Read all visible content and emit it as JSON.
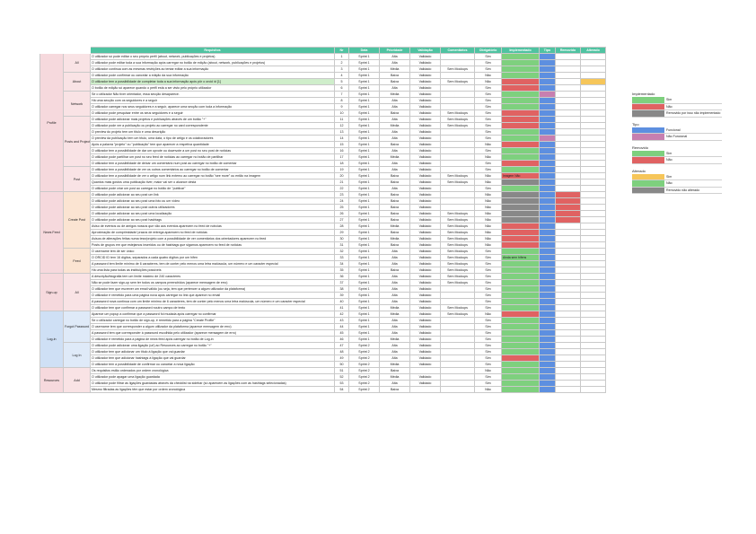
{
  "columns": [
    "",
    "",
    "Requisitos",
    "Nr",
    "Data",
    "Prioridade",
    "Validação",
    "Comentários",
    "Obrigatório",
    "Implementado",
    "Tipo",
    "Removido",
    "Alterado"
  ],
  "groups": [
    {
      "label": "Profile",
      "rows": 22,
      "style": "pink"
    },
    {
      "label": "News Feed",
      "rows": 13,
      "style": "pink"
    },
    {
      "label": "Sign-up",
      "rows": 6,
      "style": "pink"
    },
    {
      "label": "Log-in",
      "rows": 9,
      "style": "blue"
    },
    {
      "label": "Resources",
      "rows": 8,
      "style": "pink"
    }
  ],
  "subgroups": [
    {
      "label": "All",
      "rows": 3,
      "style": "pink"
    },
    {
      "label": "About",
      "rows": 3,
      "style": "pink"
    },
    {
      "label": "Network",
      "rows": 4,
      "style": "pink"
    },
    {
      "label": "Posts and Projects",
      "rows": 8,
      "style": "pink"
    },
    {
      "label": "Post",
      "rows": 4,
      "style": "pink"
    },
    {
      "label": "Create Post",
      "rows": 9,
      "style": "peach"
    },
    {
      "label": "Feed",
      "rows": 4,
      "style": "peach"
    },
    {
      "label": "All",
      "rows": 6,
      "style": "pink"
    },
    {
      "label": "Forgot Password",
      "rows": 5,
      "style": "blue"
    },
    {
      "label": "Log In",
      "rows": 4,
      "style": "blue"
    },
    {
      "label": "Add",
      "rows": 4,
      "style": "pink"
    },
    {
      "label": "View and Search",
      "rows": 4,
      "style": "pink"
    }
  ],
  "rows": [
    {
      "req": "O utilizador só pode editar o seu próprio perfil (about, network, publicações e projetos)",
      "nr": "1",
      "data": "Sprint 1",
      "prio": "Alta",
      "val": "Validado",
      "com": "",
      "obr": "Sim",
      "impl": "g",
      "tipo": "b",
      "rem": "",
      "alt": ""
    },
    {
      "req": "O utilizador pode editar toda a sua informação após carregar no botão de edição (about, network, publicações e projetos)",
      "nr": "2",
      "data": "Sprint 1",
      "prio": "Alta",
      "val": "Validado",
      "com": "",
      "obr": "Sim",
      "impl": "g",
      "tipo": "b",
      "rem": "",
      "alt": ""
    },
    {
      "req": "O utilizador continua com as mesmas restrições ao tentar editar a sua informação",
      "nr": "3",
      "data": "Sprint 1",
      "prio": "Média",
      "val": "Validado",
      "com": "Sem Mockups",
      "obr": "Sim",
      "impl": "g",
      "tipo": "b",
      "rem": "",
      "alt": ""
    },
    {
      "req": "O utilizador pode confirmar ou cancelar a edição da sua informação",
      "nr": "4",
      "data": "Sprint 1",
      "prio": "Baixa",
      "val": "Validado",
      "com": "",
      "obr": "Não",
      "impl": "g",
      "tipo": "b",
      "rem": "",
      "alt": ""
    },
    {
      "req": "O utilizador tem a possibilidade de completar toda a sua informação após pôr o orcid id [1]",
      "nr": "5",
      "data": "Sprint 1",
      "prio": "Baixa",
      "val": "Validado",
      "com": "Sem Mockups",
      "obr": "Não",
      "impl": "r",
      "tipo": "b",
      "rem": "",
      "alt": "y",
      "hl": true
    },
    {
      "req": "O botão de edição só aparece quando o perfil está a ser visto pelo próprio utilizador",
      "nr": "6",
      "data": "Sprint 1",
      "prio": "Alta",
      "val": "Validado",
      "com": "",
      "obr": "Sim",
      "impl": "r",
      "tipo": "b",
      "rem": "",
      "alt": ""
    },
    {
      "req": "Se o utilizador Não tiver orientador, essa secção desaparece.",
      "nr": "7",
      "data": "Sprint 1",
      "prio": "Média",
      "val": "Validado",
      "com": "",
      "obr": "Sim",
      "impl": "g",
      "tipo": "p",
      "rem": "",
      "alt": ""
    },
    {
      "req": "Há uma secção com os seguidores e a seguir",
      "nr": "8",
      "data": "Sprint 1",
      "prio": "Alta",
      "val": "Validado",
      "com": "",
      "obr": "Sim",
      "impl": "g",
      "tipo": "b",
      "rem": "",
      "alt": ""
    },
    {
      "req": "O utilizador carregar nos seus seguidores e a seguir, aparece uma secção com toda a informação",
      "nr": "9",
      "data": "Sprint 1",
      "prio": "Alta",
      "val": "Validado",
      "com": "",
      "obr": "Sim",
      "impl": "g",
      "tipo": "b",
      "rem": "",
      "alt": ""
    },
    {
      "req": "O utilizador pode pesquisar entre os seus seguidores e a seguir",
      "nr": "10",
      "data": "Sprint 1",
      "prio": "Baixa",
      "val": "Validado",
      "com": "Sem Mockups",
      "obr": "Sim",
      "impl": "r",
      "tipo": "b",
      "rem": "",
      "alt": ""
    },
    {
      "req": "O utilizador pode adicionar mais projetos e publicações através de um botão \"+\"",
      "nr": "11",
      "data": "Sprint 1",
      "prio": "Alta",
      "val": "Validado",
      "com": "Sem Mockups",
      "obr": "Sim",
      "impl": "r",
      "tipo": "b",
      "rem": "",
      "alt": ""
    },
    {
      "req": "O utilizador pode ver a publicação ou projeto ao carregar no card correspondente",
      "nr": "12",
      "data": "Sprint 1",
      "prio": "Média",
      "val": "Validado",
      "com": "Sem Mockups",
      "obr": "Sim",
      "impl": "r",
      "tipo": "b",
      "rem": "",
      "alt": ""
    },
    {
      "req": "O preview do projeto tem um título e uma descrição",
      "nr": "13",
      "data": "Sprint 1",
      "prio": "Alta",
      "val": "Validado",
      "com": "",
      "obr": "Sim",
      "impl": "g",
      "tipo": "b",
      "rem": "",
      "alt": ""
    },
    {
      "req": "O preview da publicação tem um título, uma data, o tipo de artigo e os colaboradores",
      "nr": "14",
      "data": "Sprint 1",
      "prio": "Alta",
      "val": "Validado",
      "com": "",
      "obr": "Sim",
      "impl": "g",
      "tipo": "p",
      "rem": "",
      "alt": ""
    },
    {
      "req": "Após a palavra \"projeto\" ou \"publicação\" tem que aparecer a respetiva quantidade",
      "nr": "15",
      "data": "Sprint 1",
      "prio": "Baixa",
      "val": "Validado",
      "com": "",
      "obr": "Não",
      "impl": "r",
      "tipo": "b",
      "rem": "",
      "alt": ""
    },
    {
      "req": "O utilizador tem a possibilidade de dar um upvote ou downvote a um post no seu post de notícias",
      "nr": "16",
      "data": "Sprint 1",
      "prio": "Alta",
      "val": "Validado",
      "com": "",
      "obr": "Sim",
      "impl": "g",
      "tipo": "b",
      "rem": "",
      "alt": ""
    },
    {
      "req": "O utilizador pode partilhar um post no seu feed de notícias ao carregar no botão de partilhar",
      "nr": "17",
      "data": "Sprint 1",
      "prio": "Média",
      "val": "Validado",
      "com": "",
      "obr": "Não",
      "impl": "g",
      "tipo": "b",
      "rem": "",
      "alt": ""
    },
    {
      "req": "O utilizador tem a possibilidade de deixar um comentário num post ao carregar no botão de comentar",
      "nr": "18",
      "data": "Sprint 1",
      "prio": "Alta",
      "val": "Validado",
      "com": "",
      "obr": "Sim",
      "impl": "r",
      "tipo": "b",
      "rem": "",
      "alt": ""
    },
    {
      "req": "O utilizador tem a possibilidade de ver os outros comentários ao carregar no botão de comentar",
      "nr": "19",
      "data": "Sprint 1",
      "prio": "Alta",
      "val": "Validado",
      "com": "",
      "obr": "Sim",
      "impl": "g",
      "tipo": "b",
      "rem": "",
      "alt": ""
    },
    {
      "req": "O utilizador tem a possibilidade de ver o artigo num link externo ao carregar no botão \"see more\" ou então na imagem",
      "nr": "20",
      "data": "Sprint 1",
      "prio": "Baixa",
      "val": "Validado",
      "com": "Sem Mockups",
      "obr": "Não",
      "impl": "r",
      "implnote": "Imagem Não",
      "tipo": "b",
      "rem": "",
      "alt": ""
    },
    {
      "req": "Quantos mais gostos uma publicação tiver, maior vai ser o alcance desta",
      "nr": "21",
      "data": "Sprint 1",
      "prio": "Baixa",
      "val": "Validado",
      "com": "Sem Mockups",
      "obr": "Não",
      "impl": "gr",
      "tipo": "b",
      "rem": "",
      "alt": ""
    },
    {
      "req": "O utilizador pode criar um post ao carregar no botão de \"publicar\"",
      "nr": "22",
      "data": "Sprint 1",
      "prio": "Alta",
      "val": "Validado",
      "com": "",
      "obr": "Sim",
      "impl": "g",
      "tipo": "b",
      "rem": "",
      "alt": ""
    },
    {
      "req": "O utilizador pode adicionar ao seu post um link",
      "nr": "23",
      "data": "Sprint 1",
      "prio": "Baixa",
      "val": "Validado",
      "com": "",
      "obr": "Não",
      "impl": "gr",
      "tipo": "b",
      "rem": "r",
      "alt": ""
    },
    {
      "req": "O utilizador pode adicionar ao seu post uma foto ou um vídeo",
      "nr": "24",
      "data": "Sprint 1",
      "prio": "Baixa",
      "val": "Validado",
      "com": "",
      "obr": "Não",
      "impl": "gr",
      "tipo": "b",
      "rem": "r",
      "alt": ""
    },
    {
      "req": "O utilizador pode adicionar ao seu post outros utilizadores",
      "nr": "25",
      "data": "Sprint 1",
      "prio": "Baixa",
      "val": "Validado",
      "com": "",
      "obr": "Não",
      "impl": "gr",
      "tipo": "b",
      "rem": "r",
      "alt": ""
    },
    {
      "req": "O utilizador pode adicionar ao seu post uma localização",
      "nr": "26",
      "data": "Sprint 1",
      "prio": "Baixa",
      "val": "Validado",
      "com": "Sem Mockups",
      "obr": "Não",
      "impl": "gr",
      "tipo": "b",
      "rem": "r",
      "alt": ""
    },
    {
      "req": "O utilizador pode adicionar ao seu post hashtags",
      "nr": "27",
      "data": "Sprint 1",
      "prio": "Baixa",
      "val": "Validado",
      "com": "Sem Mockups",
      "obr": "Não",
      "impl": "gr",
      "tipo": "b",
      "rem": "r",
      "alt": ""
    },
    {
      "req": "Aviso de eventos ou de amigos nossos que vão aos eventos aparecem no feed de notícias",
      "nr": "28",
      "data": "Sprint 1",
      "prio": "Média",
      "val": "Validado",
      "com": "Sem Mockups",
      "obr": "Não",
      "impl": "r",
      "tipo": "b",
      "rem": "",
      "alt": ""
    },
    {
      "req": "Aproximação de comprimidade/ prazos de entrega aparecem no feed de notícias",
      "nr": "29",
      "data": "Sprint 1",
      "prio": "Baixa",
      "val": "Validado",
      "com": "Sem Mockups",
      "obr": "Não",
      "impl": "r",
      "tipo": "b",
      "rem": "",
      "alt": ""
    },
    {
      "req": "Avisos de alterações feitas numa tese/projeto com a possibilidade de ver comentários dos orientadores aparecem no feed",
      "nr": "30",
      "data": "Sprint 1",
      "prio": "Média",
      "val": "Validado",
      "com": "Sem Mockups",
      "obr": "Não",
      "impl": "r",
      "tipo": "b",
      "rem": "",
      "alt": ""
    },
    {
      "req": "Posts de grupos em que estejamos inseridos ou de hashtags que sigamos aparecem no feed de notícias",
      "nr": "31",
      "data": "Sprint 1",
      "prio": "Baixa",
      "val": "Validado",
      "com": "Sem Mockups",
      "obr": "Não",
      "impl": "r",
      "tipo": "b",
      "rem": "",
      "alt": ""
    },
    {
      "req": "O username tem de ser único",
      "nr": "32",
      "data": "Sprint 1",
      "prio": "Alta",
      "val": "Validado",
      "com": "Sem Mockups",
      "obr": "Sim",
      "impl": "g",
      "tipo": "b",
      "rem": "",
      "alt": ""
    },
    {
      "req": "O ORCID ID tem 16 dígitos, separados a cada quatro dígitos por um hífen",
      "nr": "33",
      "data": "Sprint 1",
      "prio": "Alta",
      "val": "Validado",
      "com": "Sem Mockups",
      "obr": "Sim",
      "impl": "g",
      "implnote": "Ainda sem hífens",
      "tipo": "b",
      "rem": "",
      "alt": ""
    },
    {
      "req": "A password tem limite mínimo de 6 caracteres, tem de conter pelo menos uma letra maiúscula, um número e um caracter especial",
      "nr": "34",
      "data": "Sprint 1",
      "prio": "Alta",
      "val": "Validado",
      "com": "Sem Mockups",
      "obr": "Sim",
      "impl": "g",
      "tipo": "b",
      "rem": "",
      "alt": ""
    },
    {
      "req": "Há uma lista para todas as instituições possíveis",
      "nr": "35",
      "data": "Sprint 1",
      "prio": "Baixa",
      "val": "Validado",
      "com": "Sem Mockups",
      "obr": "Sim",
      "impl": "g",
      "tipo": "b",
      "rem": "",
      "alt": ""
    },
    {
      "req": "A descrição/biografia tem um limite máximo de 240 caracteres",
      "nr": "36",
      "data": "Sprint 1",
      "prio": "Alta",
      "val": "Validado",
      "com": "Sem Mockups",
      "obr": "Sim",
      "impl": "g",
      "tipo": "b",
      "rem": "",
      "alt": ""
    },
    {
      "req": "Não se pode fazer sign-up sem ter todos os campos preenchidos (aparece mensagem de erro)",
      "nr": "37",
      "data": "Sprint 1",
      "prio": "Alta",
      "val": "Validado",
      "com": "Sem Mockups",
      "obr": "Sim",
      "impl": "g",
      "tipo": "b",
      "rem": "",
      "alt": ""
    },
    {
      "req": "O utilizador tem que escrever um email válido (ou seja, tem que pertencer a algum utilizador da plataforma)",
      "nr": "38",
      "data": "Sprint 1",
      "prio": "Alta",
      "val": "Validado",
      "com": "",
      "obr": "Sim",
      "impl": "g",
      "tipo": "b",
      "rem": "",
      "alt": ""
    },
    {
      "req": "O utilizador é remetido para uma página nova após carregar no link que aparece no email",
      "nr": "39",
      "data": "Sprint 1",
      "prio": "Alta",
      "val": "Validado",
      "com": "",
      "obr": "Sim",
      "impl": "g",
      "tipo": "b",
      "rem": "",
      "alt": ""
    },
    {
      "req": "A password nova continua com um limite mínimo de 6 caracteres, tem de conter pelo menos uma letra maiúscula, um número e um caracter especial",
      "nr": "40",
      "data": "Sprint 1",
      "prio": "Alta",
      "val": "Validado",
      "com": "",
      "obr": "Sim",
      "impl": "g",
      "tipo": "b",
      "rem": "",
      "alt": ""
    },
    {
      "req": "O utilizador tem que confirmar a password noutro campo de texto",
      "nr": "41",
      "data": "Sprint 1",
      "prio": "Média",
      "val": "Validado",
      "com": "Sem Mockups",
      "obr": "Sim",
      "impl": "g",
      "tipo": "b",
      "rem": "",
      "alt": ""
    },
    {
      "req": "Aparece um popup a confirmar que a password foi mudada após carregar no confirmar",
      "nr": "42",
      "data": "Sprint 1",
      "prio": "Média",
      "val": "Validado",
      "com": "Sem Mockups",
      "obr": "Não",
      "impl": "r",
      "tipo": "b",
      "rem": "",
      "alt": ""
    },
    {
      "req": "Se o utilizador carregar no botão de sign-up, é remetido para a página \"Create Profile\"",
      "nr": "43",
      "data": "Sprint 1",
      "prio": "Alta",
      "val": "Validado",
      "com": "",
      "obr": "Sim",
      "impl": "g",
      "tipo": "b",
      "rem": "",
      "alt": ""
    },
    {
      "req": "O username tem que corresponder a algum utilizador da plataforma (aparece mensagem de erro)",
      "nr": "44",
      "data": "Sprint 1",
      "prio": "Alta",
      "val": "Validado",
      "com": "",
      "obr": "Sim",
      "impl": "g",
      "tipo": "b",
      "rem": "",
      "alt": ""
    },
    {
      "req": "A password tem que corresponder à password escolhida pelo utilizador (aparece mensagem de erro)",
      "nr": "45",
      "data": "Sprint 1",
      "prio": "Alta",
      "val": "Validado",
      "com": "",
      "obr": "Sim",
      "impl": "g",
      "tipo": "b",
      "rem": "",
      "alt": ""
    },
    {
      "req": "O utilizador é remetido para a página de news feed após carregar no botão de Log-in",
      "nr": "46",
      "data": "Sprint 1",
      "prio": "Média",
      "val": "Validado",
      "com": "",
      "obr": "Sim",
      "impl": "g",
      "tipo": "b",
      "rem": "",
      "alt": ""
    },
    {
      "req": "O utilizador pode adicionar uma ligação (url) ao Resources ao carregar no botão \"+\"",
      "nr": "47",
      "data": "Sprint 2",
      "prio": "Alta",
      "val": "Validado",
      "com": "",
      "obr": "Sim",
      "impl": "g",
      "tipo": "b",
      "rem": "",
      "alt": ""
    },
    {
      "req": "O utilizador tem que adicionar um título à ligação que vai guardar",
      "nr": "48",
      "data": "Sprint 2",
      "prio": "Alta",
      "val": "Validado",
      "com": "",
      "obr": "Sim",
      "impl": "g",
      "tipo": "b",
      "rem": "",
      "alt": ""
    },
    {
      "req": "O utilizador tem que adicionar hashtags à ligação que vai guardar",
      "nr": "49",
      "data": "Sprint 2",
      "prio": "Alta",
      "val": "Validado",
      "com": "",
      "obr": "Sim",
      "impl": "r",
      "tipo": "b",
      "rem": "",
      "alt": ""
    },
    {
      "req": "O utilizador tem a possibilidade de confirmar ou cancelar a nova ligação",
      "nr": "50",
      "data": "Sprint 2",
      "prio": "Média",
      "val": "Validado",
      "com": "",
      "obr": "Sim",
      "impl": "g",
      "tipo": "b",
      "rem": "",
      "alt": ""
    },
    {
      "req": "Os requisitos estão ordenados por ordem cronológica",
      "nr": "51",
      "data": "Sprint 2",
      "prio": "Baixa",
      "val": "",
      "com": "",
      "obr": "Não",
      "impl": "g",
      "tipo": "b",
      "rem": "",
      "alt": ""
    },
    {
      "req": "O utilizador pode apagar uma ligação guardada",
      "nr": "52",
      "data": "Sprint 2",
      "prio": "Média",
      "val": "Validado",
      "com": "",
      "obr": "Sim",
      "impl": "g",
      "tipo": "b",
      "rem": "",
      "alt": ""
    },
    {
      "req": "O utilizador pode filtrar as ligações guardadas através da checklist na sidebar (só aparecem as ligações com as hashtags selecionadas)",
      "nr": "53",
      "data": "Sprint 2",
      "prio": "Alta",
      "val": "Validado",
      "com": "",
      "obr": "Sim",
      "impl": "g",
      "tipo": "b",
      "rem": "",
      "alt": ""
    },
    {
      "req": "Mesmo filtradas as ligações têm que estar por ordem cronológica",
      "nr": "54",
      "data": "Sprint 2",
      "prio": "Baixa",
      "val": "",
      "com": "",
      "obr": "Não",
      "impl": "g",
      "tipo": "b",
      "rem": "",
      "alt": ""
    }
  ],
  "legend": [
    {
      "title": "Implementado",
      "items": [
        {
          "label": "Sim",
          "color": "g"
        },
        {
          "label": "Não",
          "color": "r"
        },
        {
          "label": "Removido por isso não implementado",
          "color": "gr"
        }
      ]
    },
    {
      "title": "Tipo",
      "items": [
        {
          "label": "Funcional",
          "color": "b"
        },
        {
          "label": "Não Funcional",
          "color": "p"
        }
      ]
    },
    {
      "title": "Removido",
      "items": [
        {
          "label": "Sim",
          "color": "g"
        },
        {
          "label": "Não",
          "color": "r"
        }
      ]
    },
    {
      "title": "Alterado",
      "items": [
        {
          "label": "Sim",
          "color": "y"
        },
        {
          "label": "Não",
          "color": "g"
        },
        {
          "label": "Removido não alterado",
          "color": "gr"
        }
      ]
    }
  ]
}
